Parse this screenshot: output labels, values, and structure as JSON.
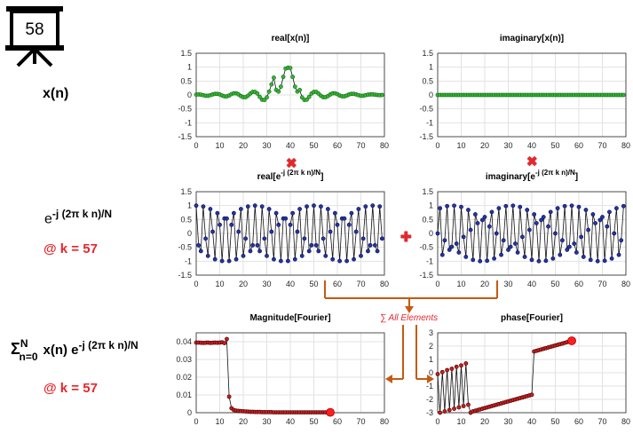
{
  "slide_badge": "58",
  "left_labels": {
    "xn": "x(n)",
    "exp_base": "e",
    "exp_power": "-j (2π k n)/N",
    "k_label_1": "@ k = 57",
    "sum_sigma": "Σ",
    "sum_sub": "n=0",
    "sum_sup": "N",
    "sum_xn": "x(n) e",
    "sum_power": "-j (2π k n)/N",
    "k_label_2": "@ k = 57"
  },
  "operators": {
    "multiply_1": "✖",
    "multiply_2": "✖",
    "plus": "✚",
    "sum_all_label": "∑ All Elements"
  },
  "colors": {
    "green_marker": "#35b535",
    "blue_marker": "#1f2a8c",
    "red_marker": "#c81e1e",
    "accent_red": "#e8262b",
    "arrow_orange": "#c55a11",
    "grid": "#e2e2e2"
  },
  "chart_data": [
    {
      "id": "real_x",
      "type": "line",
      "title": "real[x(n)]",
      "marker_color": "green",
      "xlim": [
        0,
        80
      ],
      "ylim": [
        -1.5,
        1.5
      ],
      "xticks": [
        0,
        10,
        20,
        30,
        40,
        50,
        60,
        70,
        80
      ],
      "yticks": [
        1.5,
        1,
        0.5,
        0,
        -0.5,
        -1,
        -1.5
      ],
      "ytick_labels": [
        "1.5",
        "1",
        "0.5",
        "0",
        "-0.5",
        "-1",
        "-1.5"
      ],
      "grid": true,
      "x": [
        0,
        1,
        2,
        3,
        4,
        5,
        6,
        7,
        8,
        9,
        10,
        11,
        12,
        13,
        14,
        15,
        16,
        17,
        18,
        19,
        20,
        21,
        22,
        23,
        24,
        25,
        26,
        27,
        28,
        29,
        30,
        31,
        32,
        33,
        34,
        35,
        36,
        37,
        38,
        39,
        40,
        41,
        42,
        43,
        44,
        45,
        46,
        47,
        48,
        49,
        50,
        51,
        52,
        53,
        54,
        55,
        56,
        57,
        58,
        59,
        60,
        61,
        62,
        63,
        64,
        65,
        66,
        67,
        68,
        69,
        70,
        71,
        72,
        73,
        74,
        75,
        76,
        77,
        78,
        79
      ],
      "y": [
        0.01,
        0.02,
        0.01,
        -0.01,
        -0.03,
        -0.03,
        -0.01,
        0.02,
        0.04,
        0.04,
        0.02,
        -0.02,
        -0.05,
        -0.05,
        -0.02,
        0.03,
        0.06,
        0.06,
        0.02,
        -0.04,
        -0.08,
        -0.08,
        -0.03,
        0.05,
        0.11,
        0.11,
        0.05,
        -0.07,
        -0.17,
        -0.18,
        -0.09,
        0.12,
        0.38,
        0.62,
        0.18,
        0.12,
        0.3,
        0.65,
        0.95,
        0.98,
        0.97,
        0.65,
        0.3,
        0.12,
        0.18,
        -0.09,
        -0.18,
        -0.17,
        -0.07,
        0.05,
        0.11,
        0.11,
        0.05,
        -0.03,
        -0.08,
        -0.08,
        -0.04,
        0.02,
        0.06,
        0.06,
        0.03,
        -0.02,
        -0.05,
        -0.05,
        -0.02,
        0.02,
        0.04,
        0.04,
        0.02,
        -0.01,
        -0.03,
        -0.03,
        -0.01,
        0.01,
        0.02,
        0.02,
        0.01,
        0,
        -0.01,
        0
      ]
    },
    {
      "id": "imag_x",
      "type": "line",
      "title": "imaginary[x(n)]",
      "marker_color": "green",
      "xlim": [
        0,
        80
      ],
      "ylim": [
        -1.5,
        1.5
      ],
      "xticks": [
        0,
        10,
        20,
        30,
        40,
        50,
        60,
        70,
        80
      ],
      "yticks": [
        1.5,
        1,
        0.5,
        0,
        -0.5,
        -1,
        -1.5
      ],
      "ytick_labels": [
        "1.5",
        "1",
        "0.5",
        "0",
        "-0.5",
        "-1",
        "-1.5"
      ],
      "grid": true,
      "x": [
        0,
        1,
        2,
        3,
        4,
        5,
        6,
        7,
        8,
        9,
        10,
        11,
        12,
        13,
        14,
        15,
        16,
        17,
        18,
        19,
        20,
        21,
        22,
        23,
        24,
        25,
        26,
        27,
        28,
        29,
        30,
        31,
        32,
        33,
        34,
        35,
        36,
        37,
        38,
        39,
        40,
        41,
        42,
        43,
        44,
        45,
        46,
        47,
        48,
        49,
        50,
        51,
        52,
        53,
        54,
        55,
        56,
        57,
        58,
        59,
        60,
        61,
        62,
        63,
        64,
        65,
        66,
        67,
        68,
        69,
        70,
        71,
        72,
        73,
        74,
        75,
        76,
        77,
        78,
        79
      ],
      "y": [
        0,
        0,
        0,
        0,
        0,
        0,
        0,
        0,
        0,
        0,
        0,
        0,
        0,
        0,
        0,
        0,
        0,
        0,
        0,
        0,
        0,
        0,
        0,
        0,
        0,
        0,
        0,
        0,
        0,
        0,
        0,
        0,
        0,
        0,
        0,
        0,
        0,
        0,
        0,
        0,
        0,
        0,
        0,
        0,
        0,
        0,
        0,
        0,
        0,
        0,
        0,
        0,
        0,
        0,
        0,
        0,
        0,
        0,
        0,
        0,
        0,
        0,
        0,
        0,
        0,
        0,
        0,
        0,
        0,
        0,
        0,
        0,
        0,
        0,
        0,
        0,
        0,
        0,
        0,
        0
      ]
    },
    {
      "id": "real_exp",
      "type": "line",
      "title_base": "real[e",
      "title_power": "-j (2π k n)/N",
      "title_end": "]",
      "marker_color": "blue",
      "xlim": [
        0,
        80
      ],
      "ylim": [
        -1.5,
        1.5
      ],
      "xticks": [
        0,
        10,
        20,
        30,
        40,
        50,
        60,
        70,
        80
      ],
      "yticks": [
        1.5,
        1,
        0.5,
        0,
        -0.5,
        -1,
        -1.5
      ],
      "ytick_labels": [
        "1.5",
        "1",
        "0.5",
        "0",
        "-0.5",
        "-1",
        "-1.5"
      ],
      "grid": true,
      "x": [
        0,
        1,
        2,
        3,
        4,
        5,
        6,
        7,
        8,
        9,
        10,
        11,
        12,
        13,
        14,
        15,
        16,
        17,
        18,
        19,
        20,
        21,
        22,
        23,
        24,
        25,
        26,
        27,
        28,
        29,
        30,
        31,
        32,
        33,
        34,
        35,
        36,
        37,
        38,
        39,
        40,
        41,
        42,
        43,
        44,
        45,
        46,
        47,
        48,
        49,
        50,
        51,
        52,
        53,
        54,
        55,
        56,
        57,
        58,
        59,
        60,
        61,
        62,
        63,
        64,
        65,
        66,
        67,
        68,
        69,
        70,
        71,
        72,
        73,
        74,
        75,
        76,
        77,
        78,
        79
      ],
      "y": [
        1,
        -0.426,
        -0.637,
        0.968,
        -0.187,
        -0.809,
        0.876,
        0.063,
        -0.93,
        0.729,
        0.309,
        -0.992,
        0.536,
        0.536,
        -0.992,
        0.309,
        0.729,
        -0.93,
        0.063,
        0.876,
        -0.809,
        -0.187,
        0.968,
        -0.637,
        -0.426,
        1,
        -0.426,
        -0.637,
        0.968,
        -0.187,
        -0.809,
        0.876,
        0.063,
        -0.93,
        0.729,
        0.309,
        -0.992,
        0.536,
        0.536,
        -0.992,
        0.309,
        0.729,
        -0.93,
        0.063,
        0.876,
        -0.809,
        -0.187,
        0.968,
        -0.637,
        -0.426,
        1,
        -0.426,
        -0.637,
        0.968,
        -0.187,
        -0.809,
        0.876,
        0.063,
        -0.93,
        0.729,
        0.309,
        -0.992,
        0.536,
        0.536,
        -0.992,
        0.309,
        0.729,
        -0.93,
        0.063,
        0.876,
        -0.809,
        -0.187,
        0.968,
        -0.637,
        -0.426,
        1,
        -0.426,
        -0.637,
        0.968,
        -0.187
      ]
    },
    {
      "id": "imag_exp",
      "type": "line",
      "title_base": "imaginary[e",
      "title_power": "-j (2π k n)/N",
      "title_end": "]",
      "marker_color": "blue",
      "xlim": [
        0,
        80
      ],
      "ylim": [
        -1.5,
        1.5
      ],
      "xticks": [
        0,
        10,
        20,
        30,
        40,
        50,
        60,
        70,
        80
      ],
      "yticks": [
        1.5,
        1,
        0.5,
        0,
        -0.5,
        -1,
        -1.5
      ],
      "ytick_labels": [
        "1.5",
        "1",
        "0.5",
        "0",
        "-0.5",
        "-1",
        "-1.5"
      ],
      "grid": true,
      "x": [
        0,
        1,
        2,
        3,
        4,
        5,
        6,
        7,
        8,
        9,
        10,
        11,
        12,
        13,
        14,
        15,
        16,
        17,
        18,
        19,
        20,
        21,
        22,
        23,
        24,
        25,
        26,
        27,
        28,
        29,
        30,
        31,
        32,
        33,
        34,
        35,
        36,
        37,
        38,
        39,
        40,
        41,
        42,
        43,
        44,
        45,
        46,
        47,
        48,
        49,
        50,
        51,
        52,
        53,
        54,
        55,
        56,
        57,
        58,
        59,
        60,
        61,
        62,
        63,
        64,
        65,
        66,
        67,
        68,
        69,
        70,
        71,
        72,
        73,
        74,
        75,
        76,
        77,
        78,
        79
      ],
      "y": [
        0,
        0.905,
        -0.771,
        -0.249,
        0.982,
        -0.588,
        -0.482,
        0.998,
        -0.368,
        -0.685,
        0.951,
        -0.125,
        -0.844,
        0.844,
        0.125,
        -0.951,
        0.685,
        0.368,
        -0.998,
        0.482,
        0.588,
        -0.982,
        0.249,
        0.771,
        -0.905,
        0,
        0.905,
        -0.771,
        -0.249,
        0.982,
        -0.588,
        -0.482,
        0.998,
        -0.368,
        -0.685,
        0.951,
        -0.125,
        -0.844,
        0.844,
        0.125,
        -0.951,
        0.685,
        0.368,
        -0.998,
        0.482,
        0.588,
        -0.982,
        0.249,
        0.771,
        -0.905,
        0,
        0.905,
        -0.771,
        -0.249,
        0.982,
        -0.588,
        -0.482,
        0.998,
        -0.368,
        -0.685,
        0.951,
        -0.125,
        -0.844,
        0.844,
        0.125,
        -0.951,
        0.685,
        0.368,
        -0.998,
        0.482,
        0.588,
        -0.982,
        0.249,
        0.771,
        -0.905,
        0,
        0.905,
        -0.771,
        -0.249,
        0.982
      ]
    },
    {
      "id": "magnitude",
      "type": "line",
      "title": "Magnitude[Fourier]",
      "marker_color": "red",
      "xlim": [
        0,
        80
      ],
      "ylim": [
        0,
        0.045
      ],
      "xticks": [
        0,
        10,
        20,
        30,
        40,
        50,
        60,
        70,
        80
      ],
      "yticks": [
        0,
        0.01,
        0.02,
        0.03,
        0.04
      ],
      "ytick_labels": [
        "0",
        "0.01",
        "0.02",
        "0.03",
        "0.04"
      ],
      "grid": true,
      "highlight_x": 57,
      "x": [
        0,
        1,
        2,
        3,
        4,
        5,
        6,
        7,
        8,
        9,
        10,
        11,
        12,
        13,
        14,
        15,
        16,
        17,
        18,
        19,
        20,
        21,
        22,
        23,
        24,
        25,
        26,
        27,
        28,
        29,
        30,
        31,
        32,
        33,
        34,
        35,
        36,
        37,
        38,
        39,
        40,
        41,
        42,
        43,
        44,
        45,
        46,
        47,
        48,
        49,
        50,
        51,
        52,
        53,
        54,
        55,
        56,
        57
      ],
      "y": [
        0.0395,
        0.0395,
        0.0394,
        0.0393,
        0.0394,
        0.0395,
        0.0393,
        0.0394,
        0.0395,
        0.0394,
        0.0395,
        0.0397,
        0.0392,
        0.0415,
        0.009,
        0.0025,
        0.0015,
        0.0012,
        0.001,
        0.0009,
        0.0008,
        0.0007,
        0.0006,
        0.0005,
        0.0005,
        0.0004,
        0.0004,
        0.0004,
        0.0003,
        0.0003,
        0.0003,
        0.0003,
        0.0003,
        0.0002,
        0.0002,
        0.0002,
        0.0002,
        0.0002,
        0.0002,
        0.0002,
        0.0002,
        0.0002,
        0.0002,
        0.0002,
        0.0002,
        0.0002,
        0.0002,
        0.0002,
        0.0002,
        0.0002,
        0.0002,
        0.0002,
        0.0002,
        0.0002,
        0.0002,
        0.0002,
        0.0002,
        0.0002
      ]
    },
    {
      "id": "phase",
      "type": "line",
      "title": "phase[Fourier]",
      "marker_color": "red",
      "xlim": [
        0,
        80
      ],
      "ylim": [
        -3,
        3
      ],
      "xticks": [
        0,
        10,
        20,
        30,
        40,
        50,
        60,
        70,
        80
      ],
      "yticks": [
        3,
        2,
        1,
        0,
        -1,
        -2,
        -3
      ],
      "ytick_labels": [
        "3",
        "2",
        "1",
        "0",
        "-1",
        "-2",
        "-3"
      ],
      "grid": true,
      "highlight_x": 57,
      "x": [
        0,
        1,
        2,
        3,
        4,
        5,
        6,
        7,
        8,
        9,
        10,
        11,
        12,
        13,
        14,
        15,
        16,
        17,
        18,
        19,
        20,
        21,
        22,
        23,
        24,
        25,
        26,
        27,
        28,
        29,
        30,
        31,
        32,
        33,
        34,
        35,
        36,
        37,
        38,
        39,
        40,
        41,
        42,
        43,
        44,
        45,
        46,
        47,
        48,
        49,
        50,
        51,
        52,
        53,
        54,
        55,
        56,
        57
      ],
      "y": [
        -0.1,
        -3.0,
        0.05,
        -2.9,
        0.2,
        -2.8,
        0.3,
        -2.7,
        0.45,
        -2.6,
        0.55,
        -2.5,
        0.7,
        -2.4,
        -3.0,
        -2.9,
        -2.85,
        -2.8,
        -2.75,
        -2.7,
        -2.65,
        -2.6,
        -2.55,
        -2.5,
        -2.45,
        -2.4,
        -2.35,
        -2.3,
        -2.25,
        -2.2,
        -2.15,
        -2.1,
        -2.05,
        -2.0,
        -1.95,
        -1.9,
        -1.85,
        -1.8,
        -1.75,
        -1.7,
        -1.65,
        1.6,
        1.65,
        1.7,
        1.75,
        1.8,
        1.85,
        1.9,
        1.95,
        2.0,
        2.05,
        2.1,
        2.15,
        2.2,
        2.25,
        2.3,
        2.35,
        2.4
      ]
    }
  ]
}
